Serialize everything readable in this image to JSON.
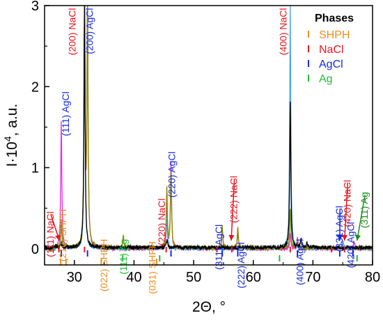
{
  "chart_data": {
    "type": "line",
    "xlabel": "2Θ, °",
    "ylabel_parts": {
      "base": "I·10",
      "exp": "4",
      "rest": ", a.u."
    },
    "xlim": [
      25,
      80
    ],
    "ylim": [
      -0.2,
      3
    ],
    "xticks": [
      30,
      40,
      50,
      60,
      70,
      80
    ],
    "yticks": [
      0,
      1,
      2,
      3
    ],
    "legend": {
      "title": "Phases",
      "placement": "top-right",
      "entries": [
        {
          "name": "SHPH",
          "color": "#f08c1e"
        },
        {
          "name": "NaCl",
          "color": "#e8141e"
        },
        {
          "name": "AgCl",
          "color": "#1428e6"
        },
        {
          "name": "Ag",
          "color": "#1ebe32"
        }
      ]
    },
    "series": [
      {
        "color": "#e628e6",
        "peaks": [
          [
            27.8,
            1.57
          ],
          [
            31.7,
            3.0
          ],
          [
            32.2,
            3.0
          ],
          [
            45.5,
            0.55
          ],
          [
            46.2,
            1.08
          ],
          [
            54.8,
            0.25
          ],
          [
            57.4,
            0.21
          ],
          [
            66.2,
            0.2
          ],
          [
            67.4,
            0.13
          ],
          [
            75.0,
            0.1
          ],
          [
            76.9,
            0.09
          ]
        ]
      },
      {
        "color": "#46aae6",
        "peaks": [
          [
            27.8,
            0.3
          ],
          [
            31.7,
            3.0
          ],
          [
            45.5,
            0.4
          ],
          [
            66.2,
            3.0
          ],
          [
            75.0,
            0.08
          ]
        ]
      },
      {
        "color": "#8c8c00",
        "peaks": [
          [
            27.8,
            0.35
          ],
          [
            28.6,
            0.05
          ],
          [
            31.7,
            3.0
          ],
          [
            32.2,
            3.0
          ],
          [
            38.2,
            0.15
          ],
          [
            45.5,
            0.75
          ],
          [
            46.2,
            0.95
          ],
          [
            54.8,
            0.27
          ],
          [
            57.4,
            0.25
          ],
          [
            66.2,
            0.5
          ],
          [
            67.4,
            0.1
          ]
        ]
      },
      {
        "color": "#000000",
        "peaks": [
          [
            27.8,
            0.06
          ],
          [
            31.7,
            3.0
          ],
          [
            45.5,
            0.1
          ],
          [
            66.2,
            1.8
          ],
          [
            68.0,
            0.1
          ],
          [
            69.0,
            0.08
          ]
        ]
      }
    ],
    "markers": {
      "SHPH": [
        27.7,
        28.6,
        34.5,
        43.8
      ],
      "NaCl": [
        27.4,
        31.7,
        45.4,
        53.9,
        56.4,
        66.2,
        73.1,
        75.3
      ],
      "AgCl": [
        27.8,
        32.2,
        46.2,
        54.8,
        57.4,
        67.4,
        74.5,
        76.7
      ],
      "Ag": [
        38.1,
        44.3,
        64.4,
        77.4
      ]
    },
    "annotations": [
      {
        "text": "(111) NaCl",
        "x": 26.5,
        "y": 0.46,
        "color": "#e8141e",
        "arrow_to": [
          27.5,
          0.1
        ]
      },
      {
        "text": "(210) SHPH",
        "x": 28.6,
        "y": 0.49,
        "color": "#f08c1e"
      },
      {
        "text": "(111) AgCl",
        "x": 29.1,
        "y": 1.94,
        "color": "#1428e6"
      },
      {
        "text": "(200) NaCl",
        "x": 30.2,
        "y": 2.97,
        "color": "#e8141e"
      },
      {
        "text": "(200) AgCl",
        "x": 33.1,
        "y": 2.97,
        "color": "#1428e6"
      },
      {
        "text": "(022) SHPH",
        "x": 35.5,
        "y": 0.12,
        "color": "#f08c1e"
      },
      {
        "text": "(111) Ag",
        "x": 38.8,
        "y": 0.12,
        "color": "#1ebe32"
      },
      {
        "text": "(031) SHPH",
        "x": 43.6,
        "y": 0.09,
        "color": "#f08c1e"
      },
      {
        "text": "(220) NaCl",
        "x": 45.2,
        "y": 0.62,
        "color": "#e8141e"
      },
      {
        "text": "(220) AgCl",
        "x": 46.9,
        "y": 1.2,
        "color": "#1428e6"
      },
      {
        "text": "(311) AgCl",
        "x": 54.8,
        "y": 0.3,
        "color": "#1428e6"
      },
      {
        "text": "(222) NaCl",
        "x": 57.3,
        "y": 0.9,
        "color": "#e8141e",
        "arrow_to": [
          56.3,
          0.1
        ]
      },
      {
        "text": "(222) AgCl",
        "x": 58.5,
        "y": 0.08,
        "color": "#1428e6"
      },
      {
        "text": "(400) NaCl",
        "x": 65.6,
        "y": 2.97,
        "color": "#e8141e"
      },
      {
        "text": "(400) AgCl",
        "x": 68.4,
        "y": 0.12,
        "color": "#1428e6"
      },
      {
        "text": "(331) AgCl",
        "x": 75.0,
        "y": 0.53,
        "color": "#1428e6",
        "arrow_to": [
          74.5,
          0.1
        ]
      },
      {
        "text": "(420) NaCl",
        "x": 76.3,
        "y": 0.85,
        "color": "#e8141e",
        "arrow_to": [
          75.3,
          0.1
        ]
      },
      {
        "text": "(420) AgCl",
        "x": 76.9,
        "y": 0.33,
        "color": "#1428e6"
      },
      {
        "text": "(311) Ag",
        "x": 79.2,
        "y": 0.7,
        "color": "#1e8c1e",
        "arrow_to": [
          77.4,
          0.1
        ]
      }
    ]
  }
}
